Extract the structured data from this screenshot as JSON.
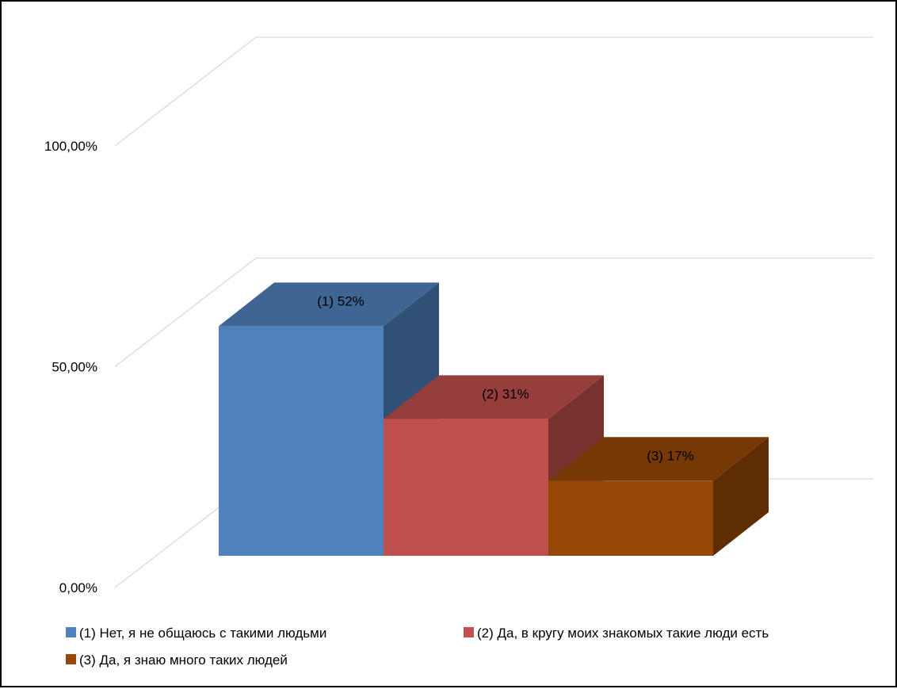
{
  "chart_data": {
    "type": "bar",
    "title": "",
    "xlabel": "",
    "ylabel": "",
    "ylim": [
      0,
      1
    ],
    "y_ticks": [
      {
        "value": 0,
        "label": "0,00%"
      },
      {
        "value": 0.5,
        "label": "50,00%"
      },
      {
        "value": 1,
        "label": "100,00%"
      }
    ],
    "grid": true,
    "three_d": true,
    "legend_position": "bottom",
    "series": [
      {
        "name": "(1) Нет, я не общаюсь с такими людьми",
        "value": 0.52,
        "data_label": "(1) 52%",
        "color": "#4f81bd"
      },
      {
        "name": "(2) Да, в кругу моих знакомых такие люди есть",
        "value": 0.31,
        "data_label": "(2) 31%",
        "color": "#c0504d"
      },
      {
        "name": "(3) Да, я знаю много таких людей",
        "value": 0.17,
        "data_label": "(3) 17%",
        "color": "#974806"
      }
    ]
  }
}
